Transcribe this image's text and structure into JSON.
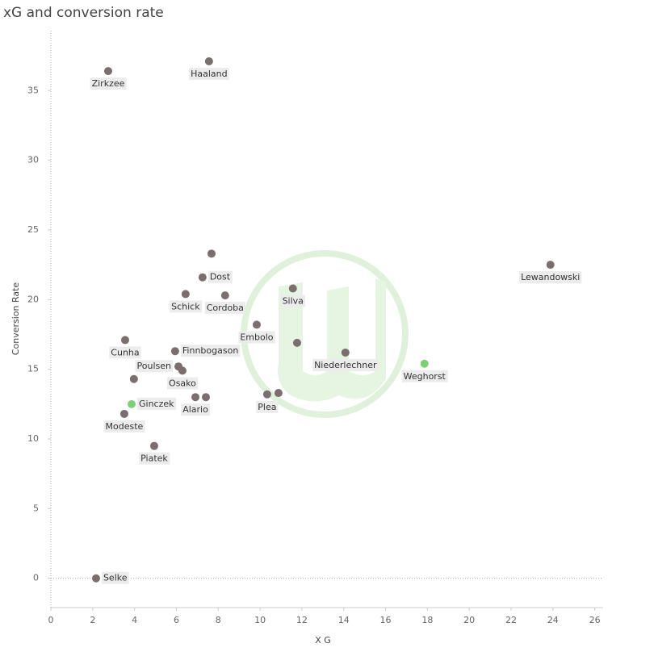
{
  "chart_data": {
    "type": "scatter",
    "title": "xG and conversion rate",
    "x_label": "X G",
    "y_label": "Conversion Rate",
    "xlim": [
      0,
      26.4
    ],
    "ylim": [
      -2.1,
      39.3
    ],
    "xticks": [
      0,
      2,
      4,
      6,
      8,
      10,
      12,
      14,
      16,
      18,
      20,
      22,
      24,
      26
    ],
    "yticks": [
      0,
      5,
      10,
      15,
      20,
      25,
      30,
      35
    ],
    "points": [
      {
        "label": "Zirkzee",
        "x": 2.74,
        "y": 36.4,
        "color": "#7b6e6e"
      },
      {
        "label": "Haaland",
        "x": 7.56,
        "y": 37.1,
        "color": "#7b6e6e"
      },
      {
        "label": null,
        "x": 7.68,
        "y": 23.3,
        "color": "#7b6e6e"
      },
      {
        "label": "Dost",
        "x": 7.25,
        "y": 21.6,
        "color": "#7b6e6e"
      },
      {
        "label": "Schick",
        "x": 6.44,
        "y": 20.4,
        "color": "#7b6e6e"
      },
      {
        "label": "Cordoba",
        "x": 8.33,
        "y": 20.3,
        "color": "#7b6e6e"
      },
      {
        "label": "Silva",
        "x": 11.57,
        "y": 20.8,
        "color": "#7b6e6e"
      },
      {
        "label": "Lewandowski",
        "x": 23.88,
        "y": 22.5,
        "color": "#7b6e6e"
      },
      {
        "label": "Embolo",
        "x": 9.84,
        "y": 18.2,
        "color": "#7b6e6e"
      },
      {
        "label": "Cunha",
        "x": 3.55,
        "y": 17.1,
        "color": "#7b6e6e"
      },
      {
        "label": "Finnbogason",
        "x": 5.94,
        "y": 16.3,
        "color": "#7b6e6e"
      },
      {
        "label": null,
        "x": 11.77,
        "y": 16.9,
        "color": "#7b6e6e"
      },
      {
        "label": "Niederlechner",
        "x": 14.08,
        "y": 16.2,
        "color": "#7b6e6e"
      },
      {
        "label": "Weghorst",
        "x": 17.86,
        "y": 15.4,
        "color": "#7dcf77"
      },
      {
        "label": "Poulsen",
        "x": 6.1,
        "y": 15.2,
        "color": "#7b6e6e"
      },
      {
        "label": "Osako",
        "x": 6.29,
        "y": 14.9,
        "color": "#7b6e6e"
      },
      {
        "label": null,
        "x": 3.97,
        "y": 14.3,
        "color": "#7b6e6e"
      },
      {
        "label": "Alario",
        "x": 6.91,
        "y": 13.0,
        "color": "#7b6e6e"
      },
      {
        "label": null,
        "x": 7.41,
        "y": 13.0,
        "color": "#7b6e6e"
      },
      {
        "label": "Plea",
        "x": 10.34,
        "y": 13.2,
        "color": "#7b6e6e"
      },
      {
        "label": null,
        "x": 10.88,
        "y": 13.3,
        "color": "#7b6e6e"
      },
      {
        "label": "Ginczek",
        "x": 3.86,
        "y": 12.5,
        "color": "#7dcf77"
      },
      {
        "label": "Modeste",
        "x": 3.51,
        "y": 11.8,
        "color": "#7b6e6e"
      },
      {
        "label": "Piatek",
        "x": 4.94,
        "y": 9.5,
        "color": "#7b6e6e"
      },
      {
        "label": "Selke",
        "x": 2.16,
        "y": 0,
        "color": "#7b6e6e"
      }
    ]
  }
}
